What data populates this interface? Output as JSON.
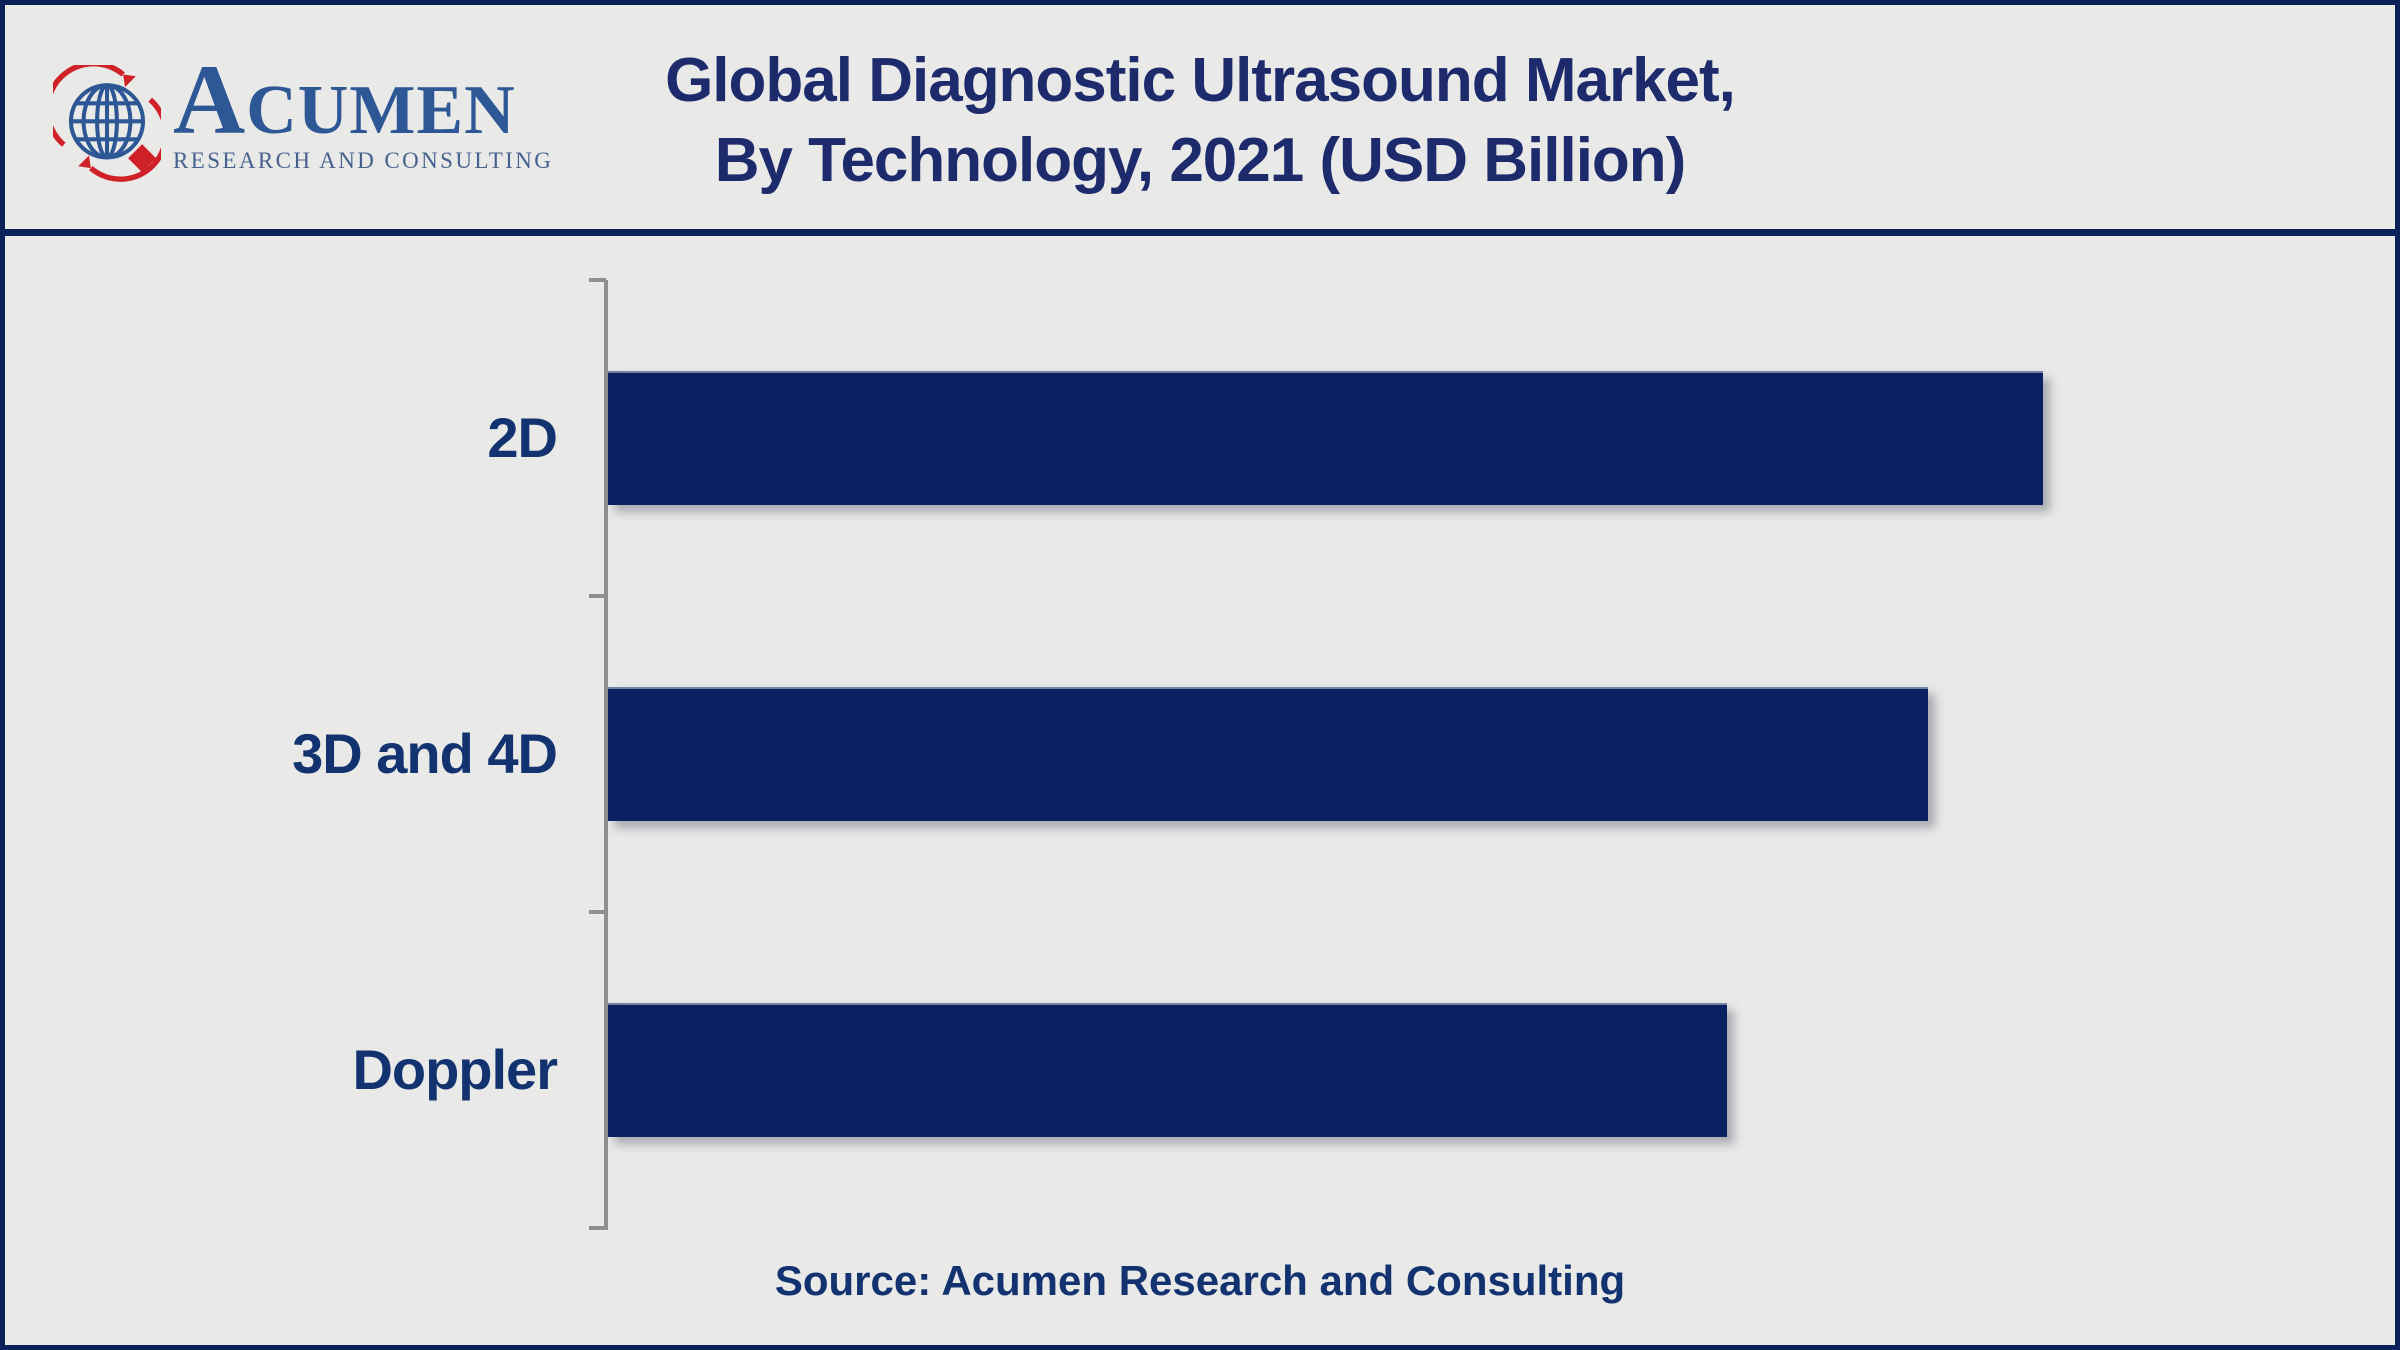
{
  "header": {
    "logo": {
      "name": "ACUMEN",
      "subtitle": "RESEARCH AND CONSULTING"
    },
    "title_line1": "Global Diagnostic Ultrasound Market,",
    "title_line2": "By Technology, 2021 (USD Billion)"
  },
  "footer": {
    "source": "Source: Acumen Research and Consulting"
  },
  "colors": {
    "background": "#e9e9e8",
    "frame_navy": "#0a2159",
    "bar_fill": "#0a2161",
    "title_text": "#1d2b6d",
    "label_text": "#123270",
    "axis_gray": "#8f8f8f",
    "logo_blue": "#2d5795",
    "logo_subtitle_blue": "#47618f",
    "logo_red": "#d02128"
  },
  "chart_data": {
    "type": "bar",
    "orientation": "horizontal",
    "title": "Global Diagnostic Ultrasound Market, By Technology, 2021 (USD Billion)",
    "unit": "USD Billion",
    "categories": [
      "2D",
      "3D and 4D",
      "Doppler"
    ],
    "values": [
      100,
      92,
      78
    ],
    "value_axis": {
      "labeled": false,
      "xlim": [
        0,
        125
      ]
    },
    "grid": false,
    "legend": false,
    "source": "Source: Acumen Research and Consulting"
  }
}
